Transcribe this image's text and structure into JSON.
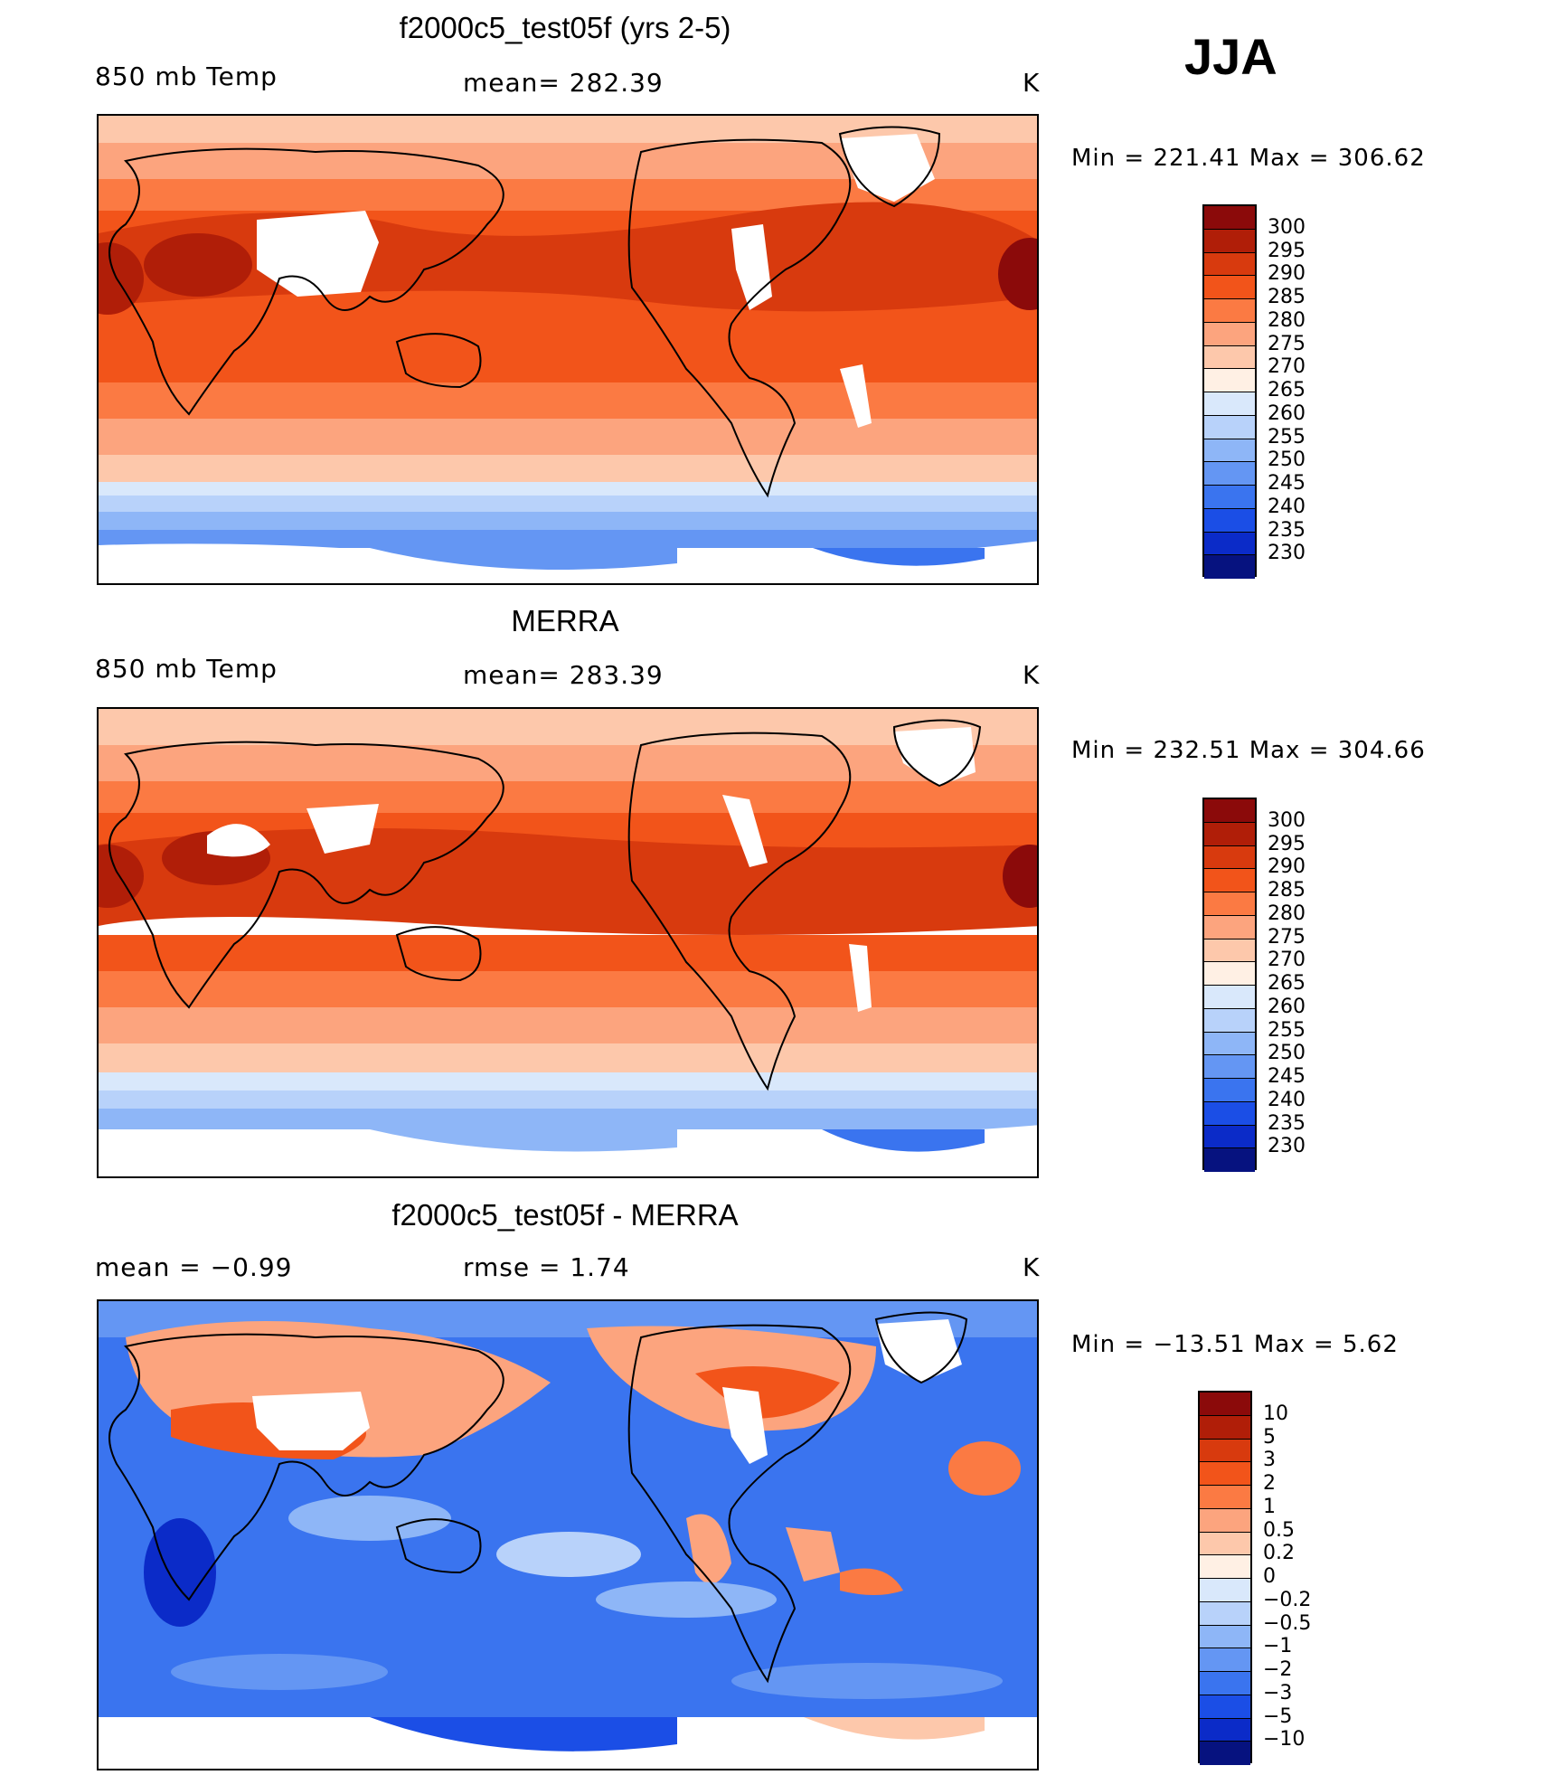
{
  "season": "JJA",
  "panels": [
    {
      "title": "f2000c5_test05f (yrs 2-5)",
      "left_label": "850 mb Temp",
      "center_label": "mean= 282.39",
      "units": "K",
      "minmax": "Min  =  221.41  Max  =  306.62"
    },
    {
      "title": "MERRA",
      "left_label": "850 mb Temp",
      "center_label": "mean= 283.39",
      "units": "K",
      "minmax": "Min  =  232.51  Max  =  304.66"
    },
    {
      "title": "f2000c5_test05f - MERRA",
      "left_label": "mean =   −0.99",
      "center_label": "rmse =    1.74",
      "units": "K",
      "minmax": "Min  =  −13.51  Max  =    5.62"
    }
  ],
  "colorbars": {
    "temperature": {
      "ticks": [
        "300",
        "295",
        "290",
        "285",
        "280",
        "275",
        "270",
        "265",
        "260",
        "255",
        "250",
        "245",
        "240",
        "235",
        "230"
      ],
      "colors": [
        "#8b0a0a",
        "#b01e08",
        "#d83a0e",
        "#f2541a",
        "#fb7a43",
        "#fca47e",
        "#fdc8ab",
        "#fff0e4",
        "#d9e8fb",
        "#b8d2fa",
        "#8eb6f7",
        "#6496f3",
        "#3a74ef",
        "#1b4ee6",
        "#0b2bc8",
        "#06127f"
      ]
    },
    "difference": {
      "ticks": [
        "10",
        "5",
        "3",
        "2",
        "1",
        "0.5",
        "0.2",
        "0",
        "−0.2",
        "−0.5",
        "−1",
        "−2",
        "−3",
        "−5",
        "−10"
      ],
      "colors": [
        "#8b0a0a",
        "#b01e08",
        "#d83a0e",
        "#f2541a",
        "#fb7a43",
        "#fca47e",
        "#fdc8ab",
        "#fff0e4",
        "#d9e8fb",
        "#b8d2fa",
        "#8eb6f7",
        "#6496f3",
        "#3a74ef",
        "#1b4ee6",
        "#0b2bc8",
        "#06127f"
      ]
    }
  }
}
